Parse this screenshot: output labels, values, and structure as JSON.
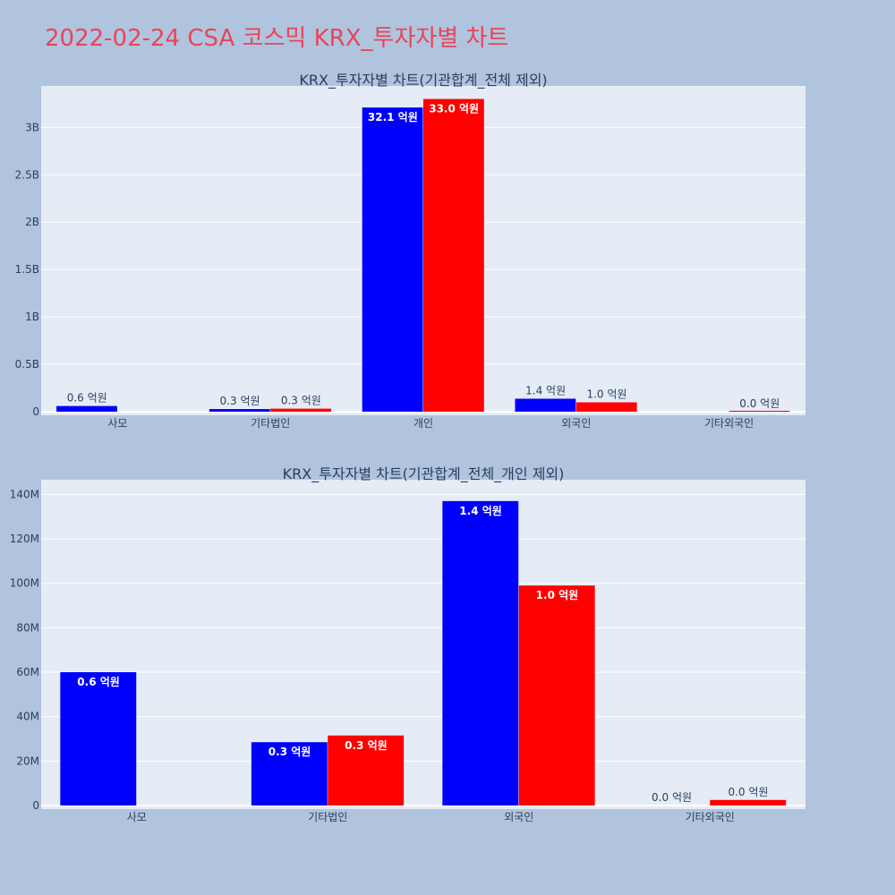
{
  "title": "2022-02-24 CSA 코스믹 KRX_투자자별 차트",
  "colors": {
    "background": "#b0c4de",
    "plot_bg": "#e5ecf6",
    "title": "#e8455a",
    "series_blue": "#0000ff",
    "series_red": "#ff0000"
  },
  "chart_data": [
    {
      "type": "bar",
      "title": "KRX_투자자별 차트(기관합계_전체 제외)",
      "categories": [
        "사모",
        "기타법인",
        "개인",
        "외국인",
        "기타외국인"
      ],
      "ylim": [
        0,
        3400000000
      ],
      "yticks": [
        {
          "value": 0,
          "label": "0"
        },
        {
          "value": 500000000,
          "label": "0.5B"
        },
        {
          "value": 1000000000,
          "label": "1B"
        },
        {
          "value": 1500000000,
          "label": "1.5B"
        },
        {
          "value": 2000000000,
          "label": "2B"
        },
        {
          "value": 2500000000,
          "label": "2.5B"
        },
        {
          "value": 3000000000,
          "label": "3B"
        }
      ],
      "grid": true,
      "series": [
        {
          "color": "#0000ff",
          "values": [
            60000000,
            28000000,
            3210000000,
            137000000,
            null
          ],
          "labels": [
            "0.6 억원",
            "0.3 억원",
            "32.1 억원",
            "1.4 억원",
            null
          ]
        },
        {
          "color": "#ff0000",
          "values": [
            null,
            32000000,
            3300000000,
            99000000,
            2000000
          ],
          "labels": [
            null,
            "0.3 억원",
            "33.0 억원",
            "1.0 억원",
            "0.0 억원"
          ]
        }
      ]
    },
    {
      "type": "bar",
      "title": "KRX_투자자별 차트(기관합계_전체_개인 제외)",
      "categories": [
        "사모",
        "기타법인",
        "외국인",
        "기타외국인"
      ],
      "ylim": [
        0,
        145000000
      ],
      "yticks": [
        {
          "value": 0,
          "label": "0"
        },
        {
          "value": 20000000,
          "label": "20M"
        },
        {
          "value": 40000000,
          "label": "40M"
        },
        {
          "value": 60000000,
          "label": "60M"
        },
        {
          "value": 80000000,
          "label": "80M"
        },
        {
          "value": 100000000,
          "label": "100M"
        },
        {
          "value": 120000000,
          "label": "120M"
        },
        {
          "value": 140000000,
          "label": "140M"
        }
      ],
      "grid": true,
      "series": [
        {
          "color": "#0000ff",
          "values": [
            60000000,
            28500000,
            137000000,
            0
          ],
          "labels": [
            "0.6 억원",
            "0.3 억원",
            "1.4 억원",
            "0.0 억원"
          ]
        },
        {
          "color": "#ff0000",
          "values": [
            null,
            31500000,
            99000000,
            2500000
          ],
          "labels": [
            null,
            "0.3 억원",
            "1.0 억원",
            "0.0 억원"
          ]
        }
      ]
    }
  ]
}
